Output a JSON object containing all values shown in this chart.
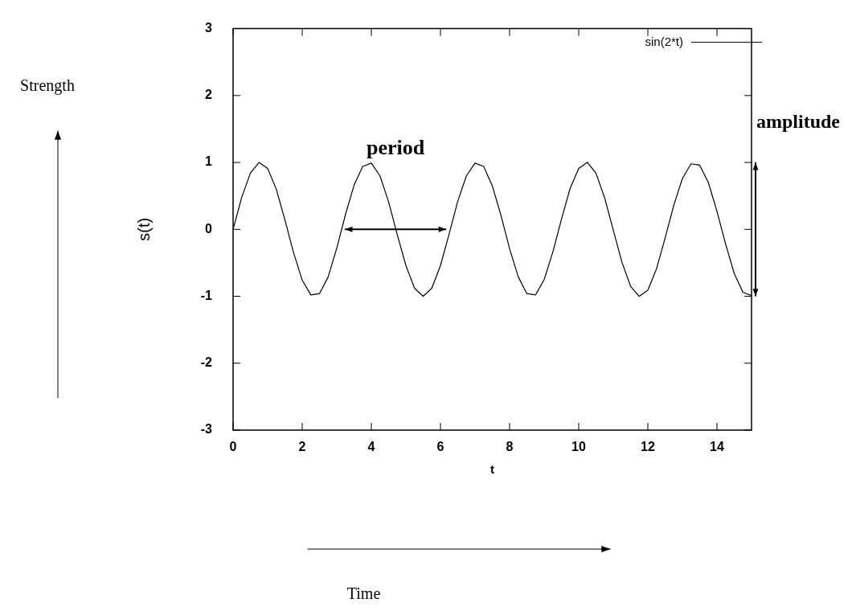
{
  "chart_data": {
    "type": "line",
    "xlabel": "t",
    "ylabel": "s(t)",
    "x": [
      0,
      0.25,
      0.5,
      0.75,
      1,
      1.25,
      1.5,
      1.75,
      2,
      2.25,
      2.5,
      2.75,
      3,
      3.25,
      3.5,
      3.75,
      4,
      4.25,
      4.5,
      4.75,
      5,
      5.25,
      5.5,
      5.75,
      6,
      6.25,
      6.5,
      6.75,
      7,
      7.25,
      7.5,
      7.75,
      8,
      8.25,
      8.5,
      8.75,
      9,
      9.25,
      9.5,
      9.75,
      10,
      10.25,
      10.5,
      10.75,
      11,
      11.25,
      11.5,
      11.75,
      12,
      12.25,
      12.5,
      12.75,
      13,
      13.25,
      13.5,
      13.75,
      14,
      14.25,
      14.5,
      14.75,
      15
    ],
    "series": [
      {
        "name": "sin(2*t)",
        "color": "#000000",
        "values": [
          0,
          0.48,
          0.84,
          1.0,
          0.91,
          0.6,
          0.14,
          -0.35,
          -0.76,
          -0.98,
          -0.96,
          -0.71,
          -0.28,
          0.22,
          0.66,
          0.94,
          0.99,
          0.8,
          0.41,
          -0.08,
          -0.54,
          -0.88,
          -1.0,
          -0.88,
          -0.54,
          -0.07,
          0.42,
          0.8,
          0.99,
          0.94,
          0.65,
          0.21,
          -0.29,
          -0.71,
          -0.96,
          -0.98,
          -0.75,
          -0.34,
          0.15,
          0.61,
          0.91,
          1.0,
          0.84,
          0.47,
          -0.01,
          -0.49,
          -0.85,
          -1.0,
          -0.91,
          -0.59,
          -0.13,
          0.36,
          0.76,
          0.98,
          0.96,
          0.7,
          0.27,
          -0.22,
          -0.66,
          -0.94,
          -0.99
        ]
      }
    ],
    "xlim": [
      0,
      15
    ],
    "xticks": [
      0,
      2,
      4,
      6,
      8,
      10,
      12,
      14
    ],
    "ylim": [
      -3,
      3
    ],
    "yticks": [
      -3,
      -2,
      -1,
      0,
      1,
      2,
      3
    ],
    "legend": "top right",
    "marker": "none",
    "line_style": "solid",
    "annotations": [
      "period",
      "amplitude",
      "Strength",
      "Time"
    ]
  }
}
